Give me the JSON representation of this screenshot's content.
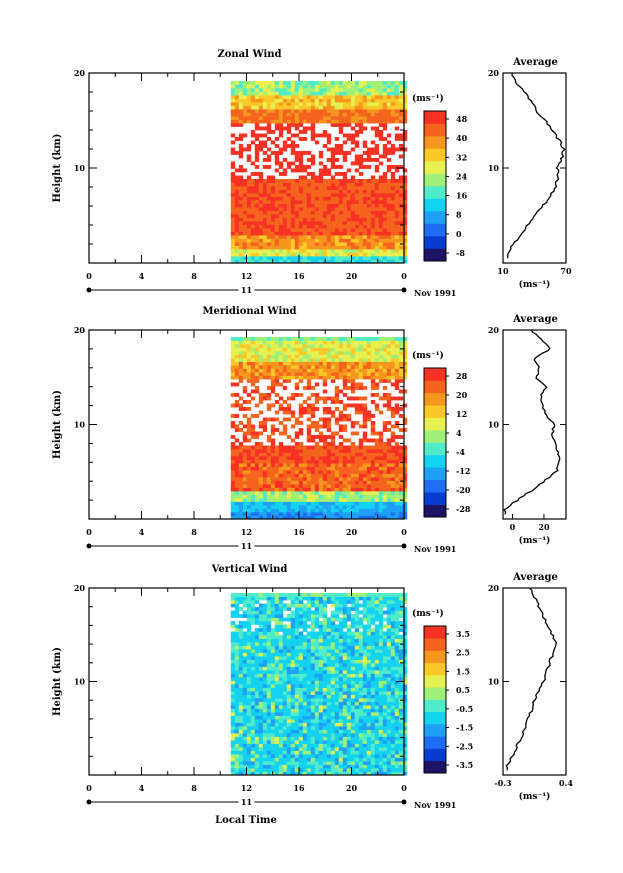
{
  "figure": {
    "x_axis_label": "Local Time",
    "date_label": "Nov 1991",
    "day_label": "11",
    "y_axis_label": "Height (km)",
    "unit": "(ms⁻¹)",
    "average_title": "Average",
    "x_ticks": [
      "0",
      "4",
      "8",
      "12",
      "16",
      "20",
      "0"
    ],
    "y_ticks": [
      "20",
      "10"
    ]
  },
  "colors": {
    "palette": [
      "#1c1464",
      "#0a3cd2",
      "#1e6ef5",
      "#1ea0f5",
      "#14d2f0",
      "#50ebc8",
      "#a0f078",
      "#e6f050",
      "#fac828",
      "#f5961e",
      "#f5641e",
      "#f53223"
    ]
  },
  "chart_data": [
    {
      "type": "heatmap",
      "title": "Zonal Wind",
      "ylabel": "Height (km)",
      "ylim": [
        0,
        20
      ],
      "xlim": [
        0,
        24
      ],
      "data_start_hour": 10.8,
      "colorbar_ticks": [
        "48",
        "40",
        "32",
        "24",
        "16",
        "8",
        "0",
        "-8"
      ],
      "colorbar_range": [
        -8,
        52
      ],
      "profile": {
        "title": "Average",
        "xticks": [
          "10",
          "70"
        ],
        "xlim": [
          10,
          70
        ],
        "xlabel": "(ms⁻¹)",
        "heights": [
          1,
          2,
          3,
          4,
          5,
          6,
          7,
          8,
          9,
          10,
          11,
          12,
          13,
          14,
          15,
          16,
          17,
          18,
          19,
          20
        ],
        "values": [
          14,
          20,
          27,
          33,
          40,
          48,
          55,
          60,
          62,
          62,
          66,
          68,
          63,
          57,
          50,
          42,
          37,
          30,
          23,
          18
        ]
      }
    },
    {
      "type": "heatmap",
      "title": "Meridional Wind",
      "ylabel": "Height (km)",
      "ylim": [
        0,
        20
      ],
      "xlim": [
        0,
        24
      ],
      "data_start_hour": 10.8,
      "colorbar_ticks": [
        "28",
        "20",
        "12",
        "4",
        "-4",
        "-12",
        "-20",
        "-28"
      ],
      "colorbar_range": [
        -30,
        30
      ],
      "profile": {
        "title": "Average",
        "xticks": [
          "0",
          "20"
        ],
        "xlim": [
          -6,
          34
        ],
        "xlabel": "(ms⁻¹)",
        "heights": [
          1,
          2,
          3,
          4,
          5,
          6,
          7,
          8,
          9,
          10,
          11,
          12,
          13,
          14,
          15,
          16,
          17,
          18,
          19,
          20
        ],
        "values": [
          -5,
          3,
          12,
          20,
          28,
          30,
          29,
          27,
          25,
          27,
          21,
          19,
          18,
          22,
          15,
          17,
          14,
          24,
          18,
          12
        ]
      }
    },
    {
      "type": "heatmap",
      "title": "Vertical Wind",
      "ylabel": "Height (km)",
      "ylim": [
        0,
        20
      ],
      "xlim": [
        0,
        24
      ],
      "data_start_hour": 10.8,
      "colorbar_ticks": [
        "3.5",
        "2.5",
        "1.5",
        "0.5",
        "-0.5",
        "-1.5",
        "-2.5",
        "-3.5"
      ],
      "colorbar_range": [
        -4,
        4
      ],
      "profile": {
        "title": "Average",
        "xticks": [
          "-0.3",
          "0.4"
        ],
        "xlim": [
          -0.3,
          0.4
        ],
        "xlabel": "(ms⁻¹)",
        "heights": [
          1,
          2,
          3,
          4,
          5,
          6,
          7,
          8,
          9,
          10,
          11,
          12,
          13,
          14,
          15,
          16,
          17,
          18,
          19,
          20
        ],
        "values": [
          -0.25,
          -0.2,
          -0.15,
          -0.1,
          -0.05,
          -0.02,
          0.02,
          0.05,
          0.1,
          0.15,
          0.18,
          0.22,
          0.25,
          0.3,
          0.25,
          0.2,
          0.15,
          0.1,
          0.05,
          0.0
        ]
      }
    }
  ]
}
